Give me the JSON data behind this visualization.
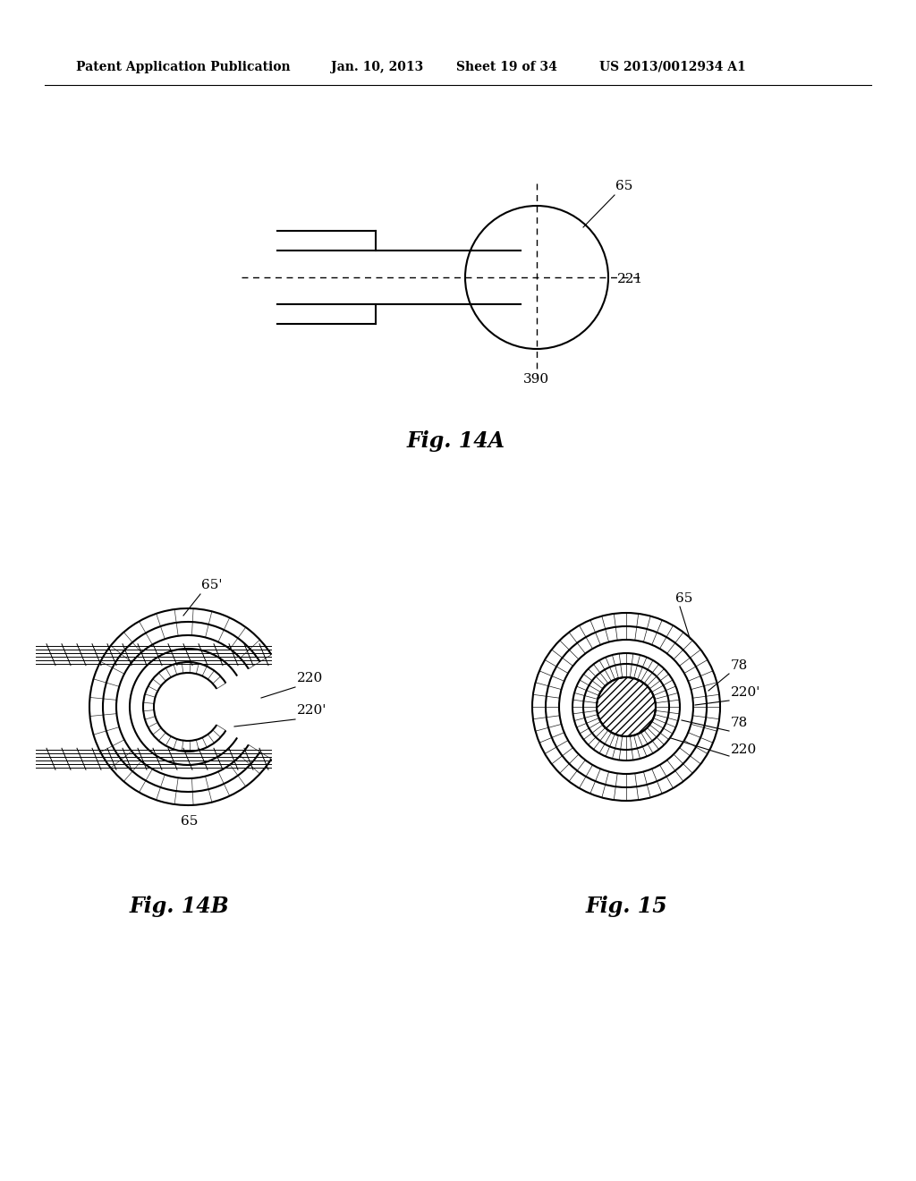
{
  "bg_color": "#ffffff",
  "header_text": "Patent Application Publication",
  "header_date": "Jan. 10, 2013",
  "header_sheet": "Sheet 19 of 34",
  "header_patent": "US 2013/0012934 A1",
  "fig14a_label": "Fig. 14A",
  "fig14b_label": "Fig. 14B",
  "fig15_label": "Fig. 15",
  "label_65": "65",
  "label_65p": "65'",
  "label_65b": "65",
  "label_221": "221",
  "label_390": "390",
  "label_220": "220",
  "label_220p": "220'",
  "label_78": "78",
  "line_color": "#000000"
}
